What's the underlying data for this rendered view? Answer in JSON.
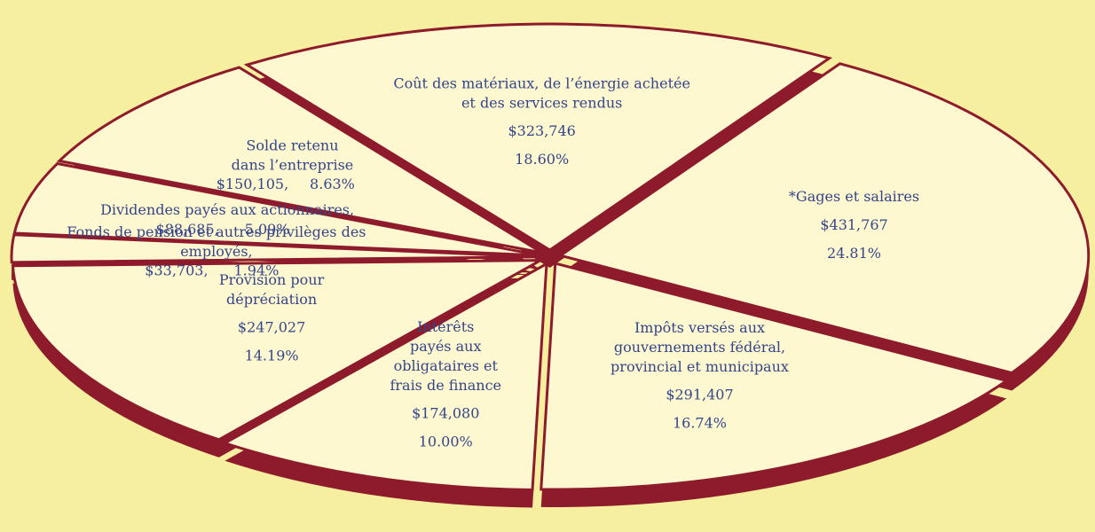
{
  "chart_data": {
    "type": "pie",
    "categories": [
      "Coût des matériaux, de l’énergie achetée\net des services rendus",
      "*Gages et salaires",
      "Impôts versés aux\ngouvernements fédéral,\nprovincial et municipaux",
      "Intérêts\npayés aux\nobligataires et\nfrais de finance",
      "Provision pour\ndépréciation",
      "Fonds de pension et autres privilèges des\nemployés,",
      "Dividendes payés aux actionnaires,",
      "Solde retenu\ndans l’entreprise"
    ],
    "values": [
      18.6,
      24.81,
      16.74,
      10.0,
      14.19,
      1.94,
      5.09,
      8.63
    ],
    "value_labels": [
      "18.60%",
      "24.81%",
      "16.74%",
      "10.00%",
      "14.19%",
      "1.94%",
      "5.09%",
      "8.63%"
    ],
    "amounts": [
      323746,
      431767,
      291407,
      174080,
      247027,
      33703,
      88685,
      150105
    ],
    "amount_labels": [
      "$323,746",
      "$431,767",
      "$291,407",
      "$174,080",
      "$247,027",
      "$33,703,",
      "$88,685,",
      "$150,105,"
    ],
    "face_color": "#fdf8cf",
    "depth_color": "#8e1b2c",
    "text_color": "#34458a",
    "background": "#f7efa0"
  }
}
